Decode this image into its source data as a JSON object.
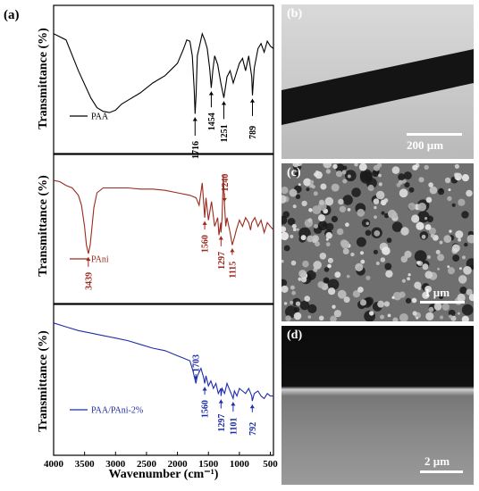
{
  "figure": {
    "panel_a_label": "(a)",
    "y_axis_label": "Transmittance (%)",
    "x_axis_label": "Wavenumber (cm⁻¹)",
    "x_ticks": [
      "4000",
      "3500",
      "3000",
      "2500",
      "2000",
      "1500",
      "1000",
      "500"
    ]
  },
  "chart_data": [
    {
      "type": "line",
      "series": [
        {
          "name": "PAA",
          "color": "#000000",
          "x": [
            4000,
            3800,
            3600,
            3400,
            3300,
            3200,
            3100,
            3000,
            2900,
            2800,
            2600,
            2400,
            2200,
            2000,
            1900,
            1850,
            1800,
            1760,
            1730,
            1716,
            1700,
            1680,
            1600,
            1560,
            1520,
            1480,
            1454,
            1430,
            1400,
            1350,
            1300,
            1251,
            1200,
            1150,
            1100,
            1050,
            1000,
            950,
            900,
            850,
            800,
            789,
            760,
            700,
            650,
            600,
            550,
            500,
            450
          ],
          "y": [
            0.9,
            0.85,
            0.6,
            0.38,
            0.3,
            0.27,
            0.26,
            0.28,
            0.33,
            0.36,
            0.42,
            0.5,
            0.56,
            0.66,
            0.78,
            0.85,
            0.84,
            0.72,
            0.45,
            0.25,
            0.4,
            0.72,
            0.9,
            0.85,
            0.78,
            0.62,
            0.46,
            0.6,
            0.72,
            0.65,
            0.5,
            0.38,
            0.55,
            0.6,
            0.5,
            0.58,
            0.66,
            0.7,
            0.6,
            0.72,
            0.55,
            0.4,
            0.62,
            0.78,
            0.82,
            0.75,
            0.84,
            0.8,
            0.78
          ]
        }
      ],
      "annotations": [
        "1716",
        "1454",
        "1251",
        "789"
      ],
      "legend": "PAA"
    },
    {
      "type": "line",
      "series": [
        {
          "name": "PAni",
          "color": "#9b2a1e",
          "x": [
            4000,
            3900,
            3800,
            3700,
            3600,
            3550,
            3500,
            3470,
            3439,
            3410,
            3380,
            3350,
            3300,
            3200,
            3000,
            2800,
            2600,
            2400,
            2200,
            2000,
            1800,
            1700,
            1650,
            1600,
            1560,
            1540,
            1500,
            1450,
            1400,
            1350,
            1330,
            1300,
            1297,
            1280,
            1260,
            1240,
            1220,
            1200,
            1150,
            1115,
            1080,
            1050,
            1000,
            950,
            900,
            850,
            820,
            800,
            750,
            700,
            650,
            600,
            550,
            500,
            450
          ],
          "y": [
            0.92,
            0.91,
            0.88,
            0.86,
            0.8,
            0.72,
            0.55,
            0.4,
            0.33,
            0.4,
            0.55,
            0.7,
            0.82,
            0.86,
            0.86,
            0.86,
            0.85,
            0.85,
            0.84,
            0.82,
            0.8,
            0.78,
            0.72,
            0.9,
            0.62,
            0.78,
            0.6,
            0.75,
            0.55,
            0.62,
            0.48,
            0.58,
            0.5,
            0.62,
            0.96,
            0.72,
            0.55,
            0.62,
            0.5,
            0.4,
            0.46,
            0.52,
            0.6,
            0.55,
            0.62,
            0.58,
            0.52,
            0.58,
            0.62,
            0.55,
            0.6,
            0.5,
            0.58,
            0.55,
            0.52
          ]
        }
      ],
      "annotations": [
        "3439",
        "1560",
        "1297",
        "1240",
        "1115"
      ],
      "legend": "PAni"
    },
    {
      "type": "line",
      "series": [
        {
          "name": "PAA/PAni-2%",
          "color": "#1f2ea8",
          "x": [
            4000,
            3800,
            3600,
            3400,
            3200,
            3000,
            2800,
            2600,
            2400,
            2200,
            2000,
            1900,
            1800,
            1750,
            1703,
            1680,
            1620,
            1580,
            1560,
            1540,
            1500,
            1460,
            1420,
            1380,
            1340,
            1300,
            1297,
            1280,
            1240,
            1200,
            1150,
            1101,
            1080,
            1040,
            1000,
            950,
            900,
            850,
            800,
            792,
            760,
            700,
            650,
            600,
            550,
            500,
            450
          ],
          "y": [
            0.98,
            0.95,
            0.92,
            0.9,
            0.88,
            0.86,
            0.84,
            0.81,
            0.78,
            0.76,
            0.72,
            0.7,
            0.68,
            0.6,
            0.5,
            0.56,
            0.62,
            0.55,
            0.5,
            0.56,
            0.48,
            0.52,
            0.46,
            0.5,
            0.42,
            0.46,
            0.4,
            0.46,
            0.42,
            0.5,
            0.44,
            0.38,
            0.44,
            0.4,
            0.46,
            0.44,
            0.42,
            0.46,
            0.4,
            0.36,
            0.42,
            0.44,
            0.4,
            0.38,
            0.42,
            0.4,
            0.4
          ]
        }
      ],
      "annotations": [
        "1703",
        "1560",
        "1297",
        "1101",
        "792"
      ],
      "legend": "PAA/PAni-2%"
    }
  ],
  "panels": {
    "b": {
      "label": "(b)",
      "scale": "200 µm"
    },
    "c": {
      "label": "(c)",
      "scale": "1 µm"
    },
    "d": {
      "label": "(d)",
      "scale": "2 µm"
    }
  }
}
